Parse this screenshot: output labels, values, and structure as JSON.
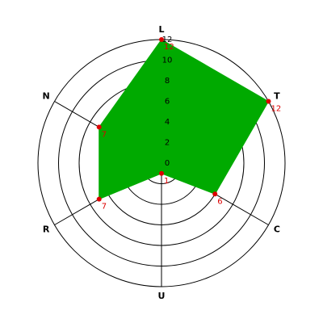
{
  "chart_data": {
    "type": "radar",
    "categories": [
      "L",
      "T",
      "C",
      "U",
      "R",
      "N"
    ],
    "values": [
      12,
      12,
      6,
      1,
      7,
      7
    ],
    "color": "#00aa00",
    "point_color": "#dd0000",
    "rlim": [
      0,
      12
    ],
    "rticks": [
      0,
      2,
      4,
      6,
      8,
      10,
      12
    ]
  }
}
